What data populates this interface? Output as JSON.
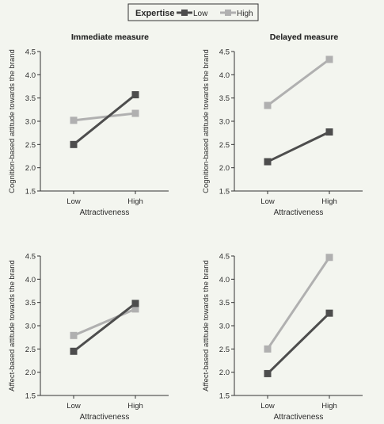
{
  "legend": {
    "title": "Expertise",
    "items": [
      {
        "label": "Low",
        "color": "#4d4d4d"
      },
      {
        "label": "High",
        "color": "#b0b0b0"
      }
    ]
  },
  "chart_data": [
    {
      "type": "line",
      "title": "Immediate measure",
      "xlabel": "Attractiveness",
      "ylabel": "Cognition-based attitude towards the brand",
      "categories": [
        "Low",
        "High"
      ],
      "ylim": [
        1.5,
        4.5
      ],
      "yticks": [
        "1.5",
        "2.0",
        "2.5",
        "3.0",
        "3.5",
        "4.0",
        "4.5"
      ],
      "series": [
        {
          "name": "Low",
          "values": [
            2.5,
            3.57
          ]
        },
        {
          "name": "High",
          "values": [
            3.02,
            3.17
          ]
        }
      ]
    },
    {
      "type": "line",
      "title": "Delayed measure",
      "xlabel": "Attractiveness",
      "ylabel": "Cognition-based attitude towards the brand",
      "categories": [
        "Low",
        "High"
      ],
      "ylim": [
        1.5,
        4.5
      ],
      "yticks": [
        "1.5",
        "2.0",
        "2.5",
        "3.0",
        "3.5",
        "4.0",
        "4.5"
      ],
      "series": [
        {
          "name": "Low",
          "values": [
            2.13,
            2.77
          ]
        },
        {
          "name": "High",
          "values": [
            3.34,
            4.33
          ]
        }
      ]
    },
    {
      "type": "line",
      "title": "Immediate measure",
      "xlabel": "Attractiveness",
      "ylabel": "Affect-based attitude towards the brand",
      "categories": [
        "Low",
        "High"
      ],
      "ylim": [
        1.5,
        4.5
      ],
      "yticks": [
        "1.5",
        "2.0",
        "2.5",
        "3.0",
        "3.5",
        "4.0",
        "4.5"
      ],
      "series": [
        {
          "name": "Low",
          "values": [
            2.45,
            3.48
          ]
        },
        {
          "name": "High",
          "values": [
            2.79,
            3.36
          ]
        }
      ]
    },
    {
      "type": "line",
      "title": "Delayed measure",
      "xlabel": "Attractiveness",
      "ylabel": "Affect-based attitude towards the brand",
      "categories": [
        "Low",
        "High"
      ],
      "ylim": [
        1.5,
        4.5
      ],
      "yticks": [
        "1.5",
        "2.0",
        "2.5",
        "3.0",
        "3.5",
        "4.0",
        "4.5"
      ],
      "series": [
        {
          "name": "Low",
          "values": [
            1.97,
            3.27
          ]
        },
        {
          "name": "High",
          "values": [
            2.5,
            4.47
          ]
        }
      ]
    }
  ]
}
